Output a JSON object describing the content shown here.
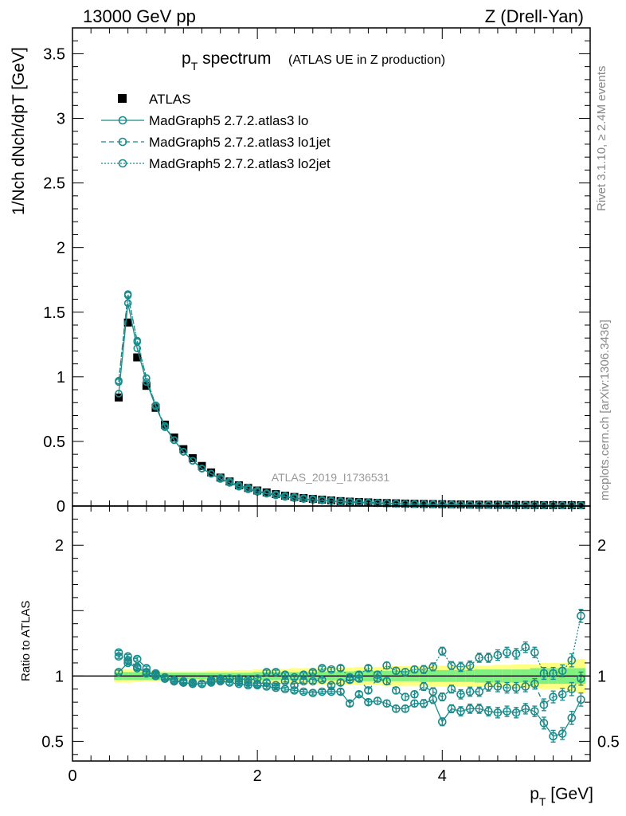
{
  "header": {
    "energy_label": "13000 GeV pp",
    "process_label": "Z (Drell-Yan)"
  },
  "side_labels": {
    "rivet": "Rivet 3.1.10, ≥ 2.4M events",
    "mcplots": "mcplots.cern.ch [arXiv:1306.3436]"
  },
  "chart_data": {
    "type": "scatter",
    "title": "pT spectrum",
    "title_main": "p",
    "title_sub": "T",
    "title_rest": " spectrum",
    "subtitle": "(ATLAS UE in Z production)",
    "analysis_watermark": "ATLAS_2019_I1736531",
    "xlabel": "pT [GeV]",
    "xlabel_main": "p",
    "xlabel_sub": "T",
    "xlabel_rest": " [GeV]",
    "ylabel": "1/Nch dNch/dpT [GeV]",
    "ratio_ylabel": "Ratio to ATLAS",
    "xlim": [
      0,
      5.6
    ],
    "ylim": [
      0,
      3.7
    ],
    "ratio_ylim": [
      0.35,
      2.3
    ],
    "x_ticks": [
      "0",
      "2",
      "4"
    ],
    "y_ticks": [
      "0",
      "0.5",
      "1",
      "1.5",
      "2",
      "2.5",
      "3",
      "3.5"
    ],
    "ratio_ticks": [
      "0.5",
      "1",
      "2"
    ],
    "legend_position": "top-left",
    "legend": [
      {
        "label": "ATLAS",
        "style": "filled-square"
      },
      {
        "label": "MadGraph5 2.7.2.atlas3 lo",
        "style": "solid"
      },
      {
        "label": "MadGraph5 2.7.2.atlas3 lo1jet",
        "style": "dashed"
      },
      {
        "label": "MadGraph5 2.7.2.atlas3 lo2jet",
        "style": "dotted"
      }
    ],
    "colors": {
      "mc": "#1a8a8a",
      "band_inner": "#80f080",
      "band_outer": "#ffff80",
      "data": "#000000"
    },
    "x": [
      0.5,
      0.6,
      0.7,
      0.8,
      0.9,
      1.0,
      1.1,
      1.2,
      1.3,
      1.4,
      1.5,
      1.6,
      1.7,
      1.8,
      1.9,
      2.0,
      2.1,
      2.2,
      2.3,
      2.4,
      2.5,
      2.6,
      2.7,
      2.8,
      2.9,
      3.0,
      3.1,
      3.2,
      3.3,
      3.4,
      3.5,
      3.6,
      3.7,
      3.8,
      3.9,
      4.0,
      4.1,
      4.2,
      4.3,
      4.4,
      4.5,
      4.6,
      4.7,
      4.8,
      4.9,
      5.0,
      5.1,
      5.2,
      5.3,
      5.4,
      5.5
    ],
    "data_values": [
      0.84,
      1.42,
      1.15,
      0.93,
      0.76,
      0.63,
      0.53,
      0.44,
      0.37,
      0.31,
      0.26,
      0.22,
      0.19,
      0.16,
      0.14,
      0.12,
      0.105,
      0.092,
      0.08,
      0.07,
      0.062,
      0.055,
      0.049,
      0.043,
      0.038,
      0.034,
      0.031,
      0.028,
      0.025,
      0.023,
      0.021,
      0.019,
      0.017,
      0.016,
      0.015,
      0.014,
      0.013,
      0.012,
      0.011,
      0.01,
      0.01,
      0.009,
      0.009,
      0.008,
      0.008,
      0.008,
      0.007,
      0.007,
      0.007,
      0.006,
      0.006
    ],
    "band_inner_halfwidth": [
      0.03,
      0.03,
      0.03,
      0.03,
      0.03,
      0.025,
      0.025,
      0.025,
      0.025,
      0.025,
      0.025,
      0.025,
      0.025,
      0.025,
      0.025,
      0.03,
      0.03,
      0.03,
      0.03,
      0.03,
      0.03,
      0.03,
      0.035,
      0.035,
      0.035,
      0.035,
      0.04,
      0.04,
      0.04,
      0.04,
      0.04,
      0.04,
      0.04,
      0.045,
      0.045,
      0.045,
      0.045,
      0.045,
      0.045,
      0.05,
      0.05,
      0.05,
      0.05,
      0.05,
      0.05,
      0.06,
      0.06,
      0.06,
      0.06,
      0.06,
      0.06
    ],
    "band_outer_halfwidth": [
      0.05,
      0.05,
      0.045,
      0.04,
      0.04,
      0.035,
      0.035,
      0.035,
      0.035,
      0.035,
      0.04,
      0.04,
      0.04,
      0.045,
      0.045,
      0.05,
      0.05,
      0.055,
      0.055,
      0.06,
      0.06,
      0.06,
      0.065,
      0.065,
      0.065,
      0.065,
      0.07,
      0.07,
      0.07,
      0.075,
      0.075,
      0.075,
      0.075,
      0.075,
      0.08,
      0.08,
      0.08,
      0.08,
      0.08,
      0.08,
      0.08,
      0.085,
      0.085,
      0.09,
      0.09,
      0.09,
      0.1,
      0.1,
      0.1,
      0.12,
      0.13
    ],
    "series": [
      {
        "name": "MadGraph5 2.7.2.atlas3 lo",
        "linestyle": "solid",
        "values": [
          0.87,
          1.57,
          1.22,
          0.96,
          0.77,
          0.61,
          0.51,
          0.42,
          0.35,
          0.29,
          0.25,
          0.21,
          0.18,
          0.15,
          0.13,
          0.11,
          0.095,
          0.082,
          0.07,
          0.061,
          0.054,
          0.048,
          0.043,
          0.038,
          0.033,
          0.029,
          0.026,
          0.023,
          0.021,
          0.019,
          0.017,
          0.015,
          0.014,
          0.013,
          0.012,
          0.011,
          0.01,
          0.009,
          0.009,
          0.008,
          0.008,
          0.007,
          0.007,
          0.006,
          0.006,
          0.006,
          0.005,
          0.005,
          0.005,
          0.004,
          0.004
        ],
        "ratio": [
          1.03,
          1.1,
          1.06,
          1.03,
          1.01,
          0.98,
          0.96,
          0.95,
          0.94,
          0.94,
          0.95,
          0.96,
          0.95,
          0.94,
          0.93,
          0.93,
          0.92,
          0.91,
          0.9,
          0.89,
          0.88,
          0.87,
          0.88,
          0.88,
          0.88,
          0.79,
          0.86,
          0.8,
          0.81,
          0.79,
          0.75,
          0.75,
          0.79,
          0.79,
          0.82,
          0.65,
          0.75,
          0.73,
          0.75,
          0.75,
          0.73,
          0.72,
          0.73,
          0.72,
          0.75,
          0.73,
          0.64,
          0.54,
          0.56,
          0.68,
          0.82
        ],
        "ratio_err": [
          0.015,
          0.015,
          0.015,
          0.015,
          0.015,
          0.015,
          0.015,
          0.015,
          0.015,
          0.015,
          0.015,
          0.015,
          0.015,
          0.015,
          0.015,
          0.015,
          0.015,
          0.015,
          0.015,
          0.015,
          0.015,
          0.015,
          0.015,
          0.015,
          0.02,
          0.02,
          0.02,
          0.02,
          0.025,
          0.025,
          0.025,
          0.025,
          0.025,
          0.03,
          0.03,
          0.03,
          0.03,
          0.035,
          0.035,
          0.035,
          0.035,
          0.04,
          0.04,
          0.04,
          0.04,
          0.04,
          0.045,
          0.045,
          0.045,
          0.05,
          0.05
        ]
      },
      {
        "name": "MadGraph5 2.7.2.atlas3 lo1jet",
        "linestyle": "dashed",
        "values": [
          0.97,
          1.64,
          1.27,
          0.99,
          0.78,
          0.62,
          0.51,
          0.42,
          0.35,
          0.29,
          0.25,
          0.21,
          0.18,
          0.15,
          0.13,
          0.11,
          0.096,
          0.083,
          0.072,
          0.063,
          0.055,
          0.048,
          0.043,
          0.038,
          0.034,
          0.03,
          0.027,
          0.024,
          0.022,
          0.02,
          0.018,
          0.016,
          0.015,
          0.014,
          0.013,
          0.012,
          0.011,
          0.01,
          0.009,
          0.009,
          0.008,
          0.008,
          0.007,
          0.007,
          0.007,
          0.006,
          0.006,
          0.005,
          0.005,
          0.005,
          0.005
        ],
        "ratio": [
          1.18,
          1.15,
          1.13,
          1.06,
          1.02,
          0.99,
          0.97,
          0.95,
          0.95,
          0.94,
          0.97,
          0.97,
          0.98,
          0.96,
          0.95,
          0.94,
          0.95,
          0.93,
          0.96,
          0.93,
          0.96,
          0.96,
          0.97,
          0.93,
          0.95,
          0.97,
          0.98,
          0.89,
          0.98,
          0.96,
          0.89,
          0.84,
          0.86,
          0.92,
          0.88,
          0.84,
          0.9,
          0.86,
          0.88,
          0.88,
          0.92,
          0.92,
          0.91,
          0.91,
          0.92,
          0.94,
          0.78,
          0.84,
          0.86,
          0.9,
          0.98
        ],
        "ratio_err": [
          0.015,
          0.015,
          0.015,
          0.015,
          0.015,
          0.015,
          0.015,
          0.015,
          0.015,
          0.015,
          0.015,
          0.015,
          0.015,
          0.015,
          0.015,
          0.015,
          0.015,
          0.015,
          0.015,
          0.015,
          0.015,
          0.015,
          0.015,
          0.015,
          0.02,
          0.02,
          0.02,
          0.02,
          0.025,
          0.025,
          0.025,
          0.025,
          0.025,
          0.03,
          0.03,
          0.03,
          0.03,
          0.035,
          0.035,
          0.035,
          0.035,
          0.04,
          0.04,
          0.04,
          0.04,
          0.04,
          0.045,
          0.045,
          0.045,
          0.05,
          0.05
        ]
      },
      {
        "name": "MadGraph5 2.7.2.atlas3 lo2jet",
        "linestyle": "dotted",
        "values": [
          0.96,
          1.63,
          1.28,
          0.99,
          0.78,
          0.61,
          0.51,
          0.42,
          0.35,
          0.29,
          0.25,
          0.22,
          0.19,
          0.16,
          0.14,
          0.12,
          0.1,
          0.09,
          0.08,
          0.07,
          0.062,
          0.055,
          0.049,
          0.043,
          0.038,
          0.035,
          0.031,
          0.028,
          0.026,
          0.023,
          0.021,
          0.019,
          0.017,
          0.016,
          0.015,
          0.014,
          0.013,
          0.012,
          0.011,
          0.01,
          0.01,
          0.009,
          0.009,
          0.008,
          0.008,
          0.008,
          0.007,
          0.007,
          0.007,
          0.006,
          0.006
        ],
        "ratio": [
          1.15,
          1.12,
          1.07,
          1.02,
          1.0,
          0.98,
          0.96,
          0.96,
          0.95,
          0.94,
          0.96,
          0.98,
          0.98,
          0.98,
          0.97,
          0.98,
          1.03,
          1.03,
          1.01,
          0.99,
          1.01,
          1.03,
          1.06,
          1.05,
          1.06,
          0.99,
          1.01,
          1.06,
          1.01,
          1.08,
          1.04,
          1.03,
          1.05,
          1.05,
          1.07,
          1.19,
          1.08,
          1.07,
          1.08,
          1.14,
          1.14,
          1.16,
          1.18,
          1.17,
          1.22,
          1.18,
          1.02,
          1.02,
          1.04,
          1.12,
          1.46
        ],
        "ratio_err": [
          0.015,
          0.015,
          0.015,
          0.015,
          0.015,
          0.015,
          0.015,
          0.015,
          0.015,
          0.015,
          0.015,
          0.015,
          0.015,
          0.015,
          0.015,
          0.015,
          0.015,
          0.015,
          0.015,
          0.015,
          0.015,
          0.015,
          0.015,
          0.015,
          0.02,
          0.02,
          0.02,
          0.02,
          0.025,
          0.025,
          0.025,
          0.025,
          0.025,
          0.03,
          0.03,
          0.03,
          0.03,
          0.035,
          0.035,
          0.035,
          0.035,
          0.04,
          0.04,
          0.04,
          0.04,
          0.04,
          0.045,
          0.045,
          0.045,
          0.05,
          0.05
        ]
      }
    ]
  }
}
